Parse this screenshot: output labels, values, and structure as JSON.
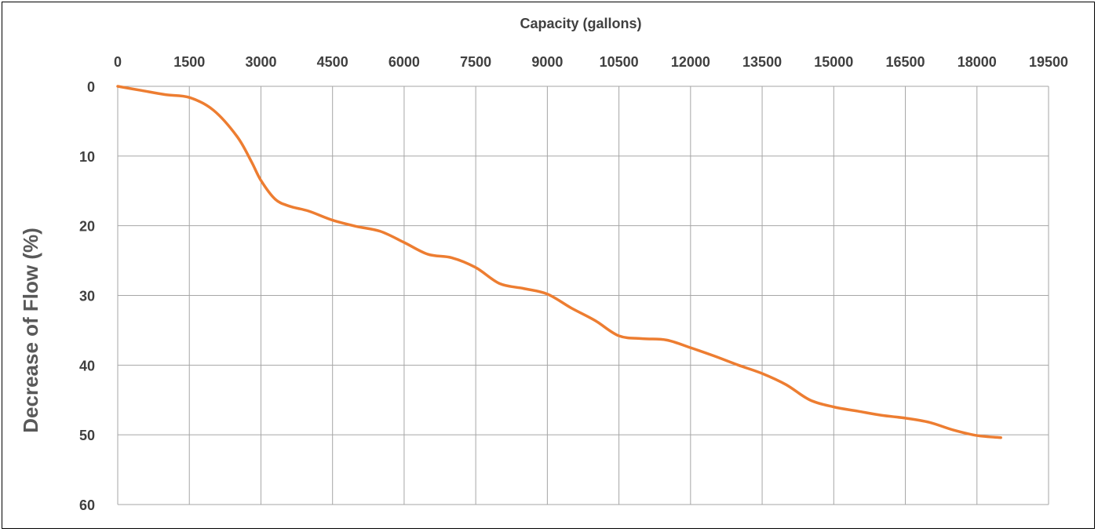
{
  "chart_data": {
    "type": "line",
    "title": "",
    "xlabel": "Capacity (gallons)",
    "ylabel": "Decrease of Flow  (%)",
    "x_axis_position": "top",
    "y_axis_inverted": true,
    "xlim": [
      0,
      19500
    ],
    "ylim": [
      0,
      60
    ],
    "x_ticks": [
      "0",
      "1500",
      "3000",
      "4500",
      "6000",
      "7500",
      "9000",
      "10500",
      "12000",
      "13500",
      "15000",
      "16500",
      "18000",
      "19500"
    ],
    "y_ticks": [
      "0",
      "10",
      "20",
      "30",
      "40",
      "50",
      "60"
    ],
    "grid": true,
    "legend": "none",
    "series": [
      {
        "color": "#ed7d31",
        "x": [
          0,
          500,
          1000,
          1500,
          2000,
          2500,
          2800,
          3000,
          3300,
          3600,
          4000,
          4500,
          5000,
          5500,
          6000,
          6500,
          7000,
          7500,
          8000,
          8500,
          9000,
          9500,
          10000,
          10500,
          11000,
          11500,
          12000,
          12500,
          13000,
          13500,
          14000,
          14500,
          15000,
          15500,
          16000,
          16500,
          17000,
          17500,
          18000,
          18500
        ],
        "y": [
          0,
          0.6,
          1.2,
          1.6,
          3.4,
          7.2,
          10.8,
          13.5,
          16.2,
          17.2,
          17.9,
          19.2,
          20.1,
          20.8,
          22.4,
          24.1,
          24.6,
          26.0,
          28.3,
          29.0,
          29.8,
          31.8,
          33.6,
          35.8,
          36.2,
          36.4,
          37.5,
          38.7,
          40.0,
          41.2,
          42.8,
          45.0,
          46.0,
          46.6,
          47.2,
          47.6,
          48.2,
          49.3,
          50.1,
          50.4
        ]
      }
    ]
  }
}
